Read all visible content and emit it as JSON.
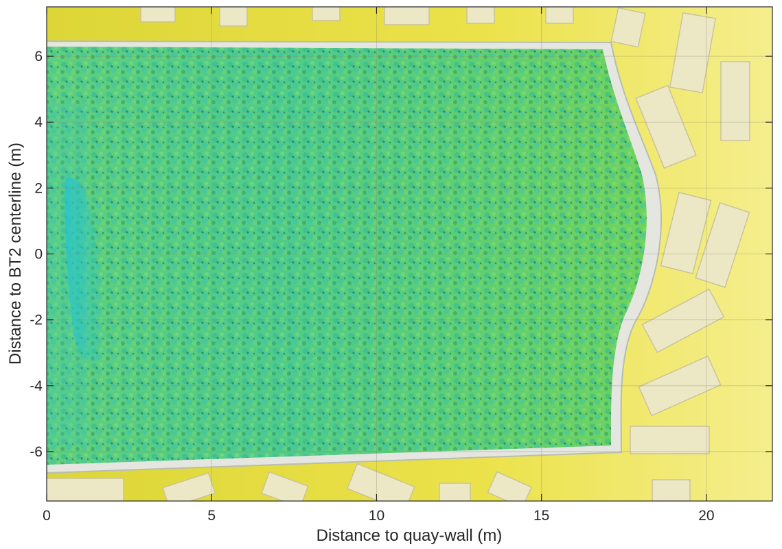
{
  "chart_data": {
    "type": "heatmap",
    "title": "",
    "xlabel": "Distance to quay-wall (m)",
    "ylabel": "Distance to BT2 centerline (m)",
    "xlim": [
      0,
      22
    ],
    "ylim": [
      -7.5,
      7.5
    ],
    "x_ticks": [
      0,
      5,
      10,
      15,
      20
    ],
    "y_ticks": [
      -6,
      -4,
      -2,
      0,
      2,
      4,
      6
    ],
    "x_tick_labels": [
      "0",
      "5",
      "10",
      "15",
      "20"
    ],
    "y_tick_labels": [
      "-6",
      "-4",
      "-2",
      "0",
      "2",
      "4",
      "6"
    ],
    "grid": true,
    "colorbar": false,
    "surface": {
      "description_colors": {
        "bed_low": "#e8dd3a",
        "bed_high": "#f6f08a",
        "rock_layer_low": "#38c7a8",
        "rock_layer_high": "#6fd45c",
        "scour_deep": "#22c9d8",
        "blocks": "#ece8c8"
      },
      "rock_protection_extent": {
        "x": [
          0,
          18.2
        ],
        "y": [
          -6.4,
          6.4
        ]
      }
    }
  }
}
